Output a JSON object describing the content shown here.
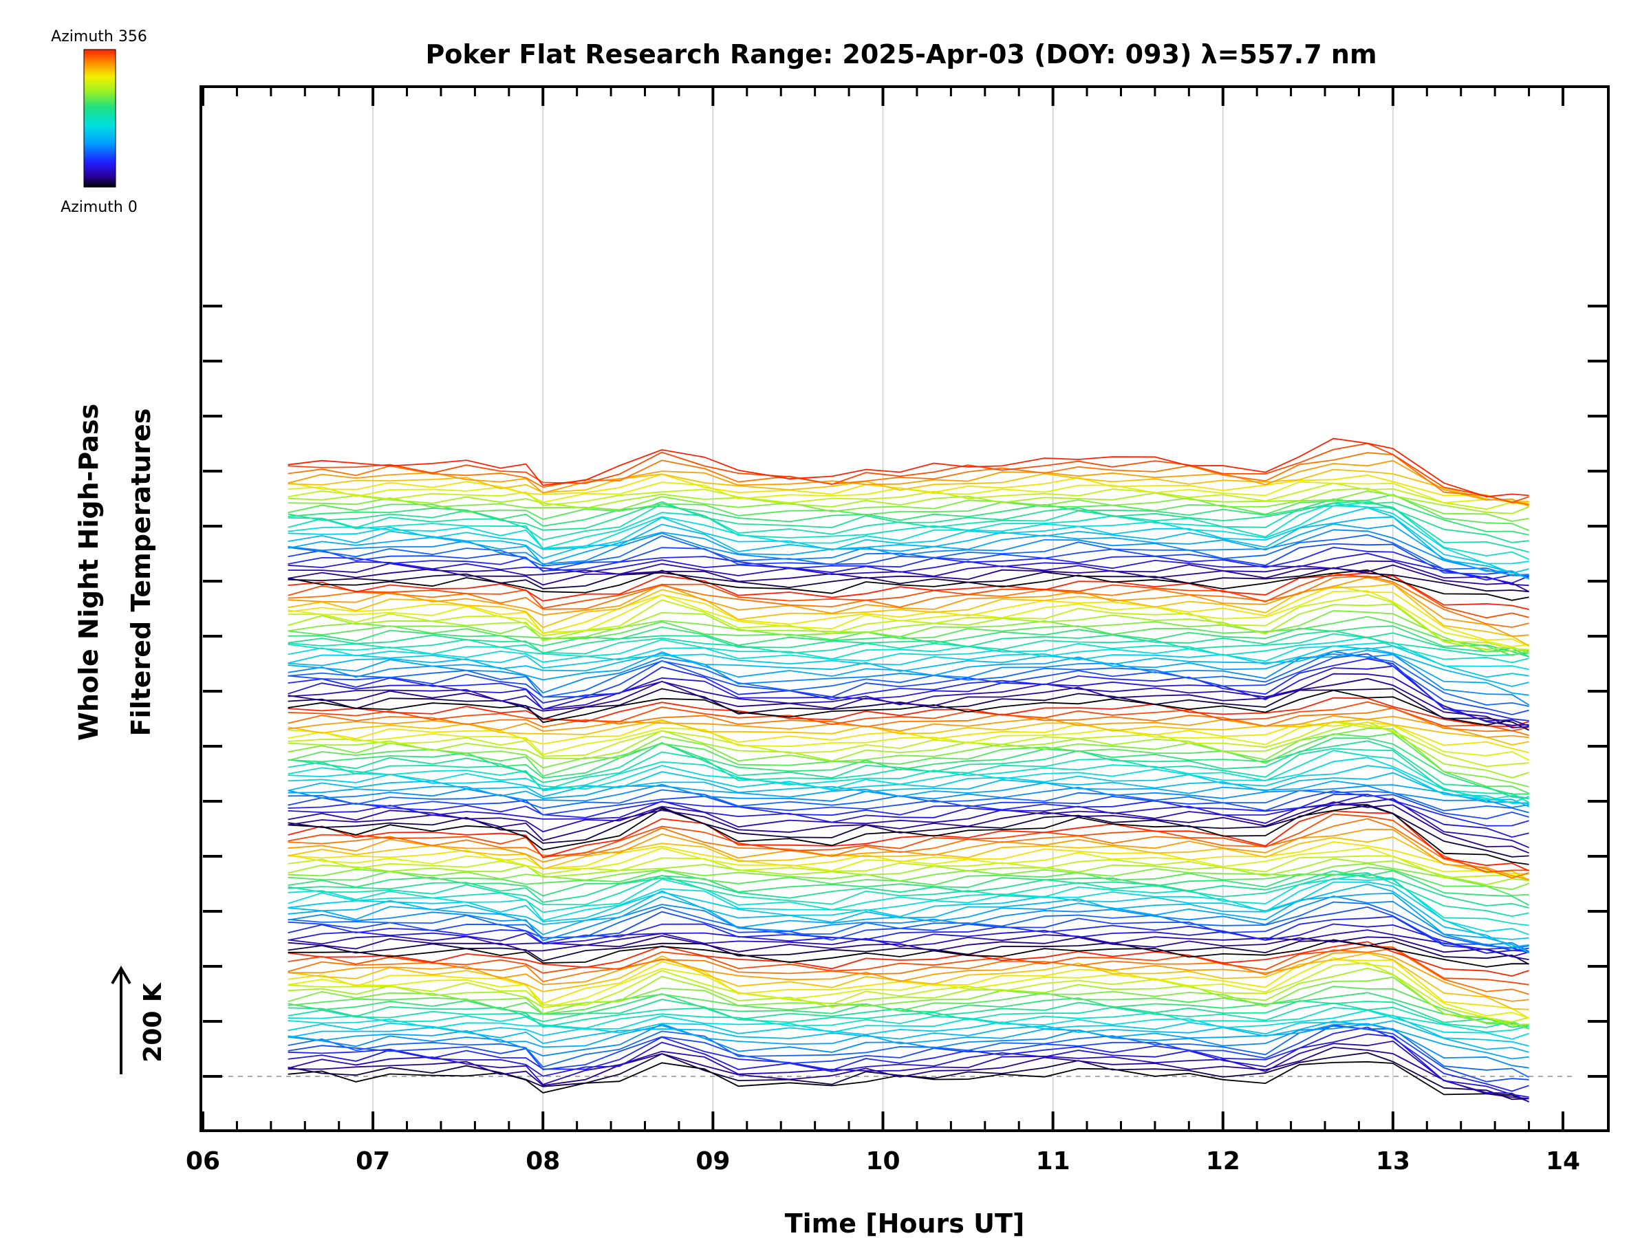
{
  "chart_data": {
    "type": "line",
    "title": "Poker Flat Research Range: 2025-Apr-03 (DOY: 093) λ=557.7 nm",
    "xlabel": "Time [Hours UT]",
    "ylabel_line1": "Whole Night High-Pass",
    "ylabel_line2": "Filtered Temperatures",
    "xlim": [
      6,
      14
    ],
    "x_ticks": [
      6,
      7,
      8,
      9,
      10,
      11,
      12,
      13,
      14
    ],
    "x_tick_labels": [
      "06",
      "07",
      "08",
      "09",
      "10",
      "11",
      "12",
      "13",
      "14"
    ],
    "time_range": [
      6.5,
      13.8
    ],
    "time_samples": [
      6.5,
      6.7,
      6.9,
      7.1,
      7.35,
      7.55,
      7.75,
      7.9,
      8.0,
      8.25,
      8.45,
      8.7,
      8.95,
      9.15,
      9.45,
      9.7,
      9.9,
      10.1,
      10.3,
      10.5,
      10.7,
      10.95,
      11.15,
      11.35,
      11.6,
      11.8,
      12.0,
      12.25,
      12.45,
      12.65,
      12.85,
      13.0,
      13.3,
      13.55,
      13.7,
      13.8
    ],
    "offset_scale": {
      "label": "200 K",
      "kelvin": 200
    },
    "series_count": 140,
    "series_group_size": 28,
    "azimuth_range": [
      0,
      356
    ],
    "colorbar": {
      "top_label": "Azimuth 356",
      "bottom_label": "Azimuth 0",
      "colormap": "rainbow"
    },
    "common_profile": [
      0.0,
      4.0,
      -2.0,
      6.0,
      2.0,
      4.0,
      -4.0,
      -6.0,
      -30.0,
      -18.0,
      -5.0,
      25.0,
      8.0,
      -14.0,
      -15.0,
      -18.0,
      -8.0,
      -10.0,
      -6.0,
      -2.0,
      3.0,
      8.0,
      12.0,
      8.0,
      6.0,
      4.0,
      -2.0,
      -10.0,
      15.0,
      32.0,
      34.0,
      28.0,
      -30.0,
      -44.0,
      -50.0,
      -54.0
    ],
    "colors": {
      "dashed_baseline": "#aaaaaa",
      "gridline": "#cfcfcf",
      "axis": "#000000"
    }
  }
}
